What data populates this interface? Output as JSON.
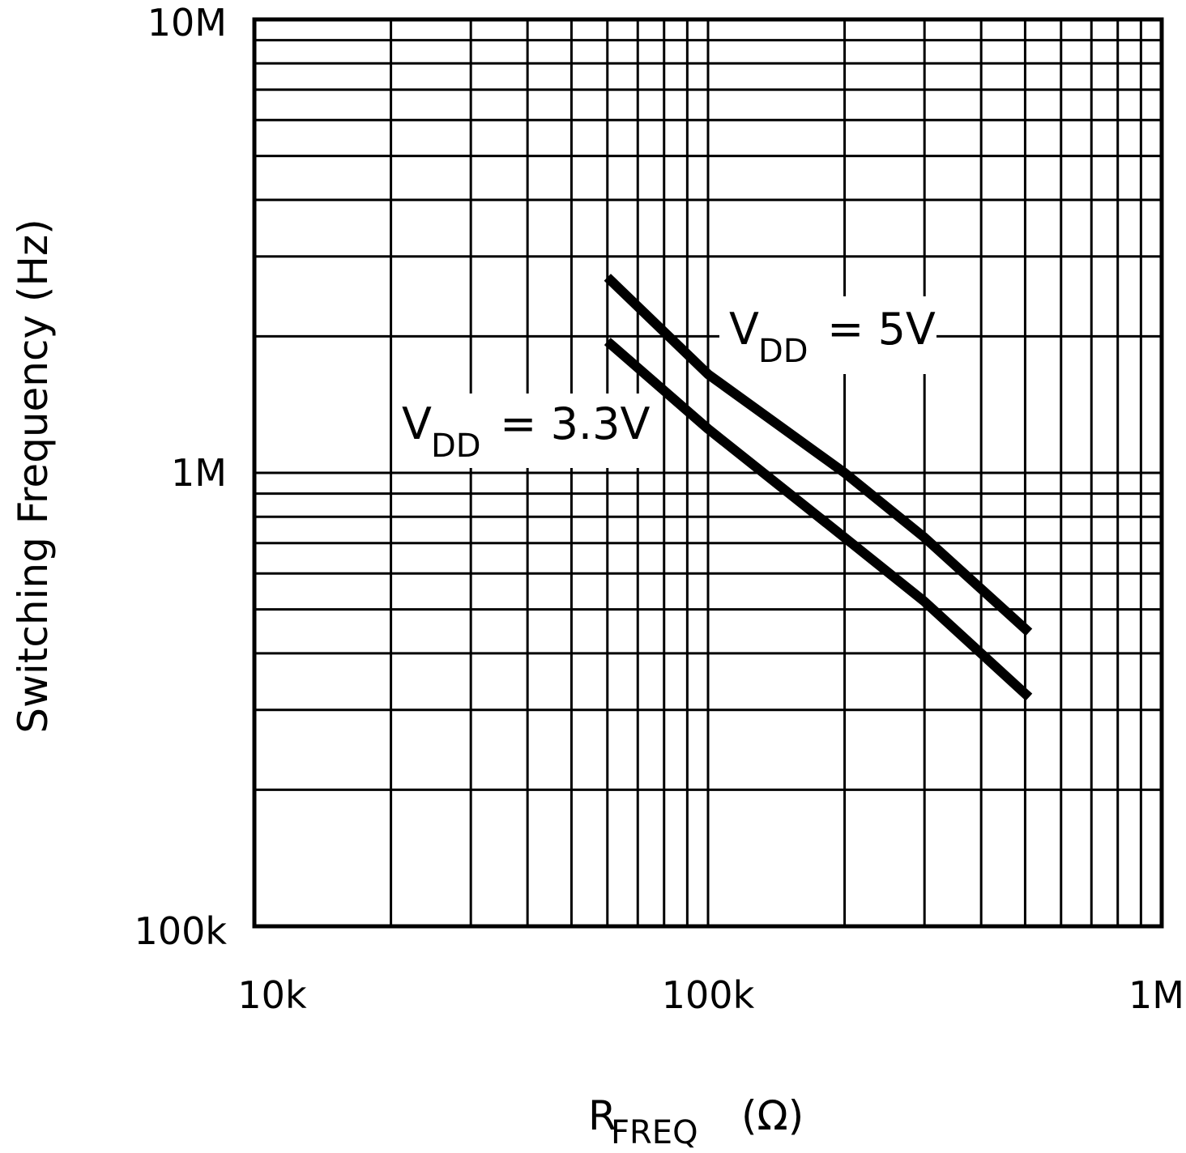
{
  "chart_data": {
    "type": "line",
    "title": "",
    "xlabel": {
      "main": "R",
      "sub": "FREQ",
      "unit": "(Ω)"
    },
    "ylabel": "Switching Frequency (Hz)",
    "xscale": "log",
    "yscale": "log",
    "xlim": [
      10000,
      1000000
    ],
    "ylim": [
      100000,
      10000000
    ],
    "grid": true,
    "x_ticks": [
      {
        "value": 10000,
        "label": "10k"
      },
      {
        "value": 100000,
        "label": "100k"
      },
      {
        "value": 1000000,
        "label": "1M"
      }
    ],
    "y_ticks": [
      {
        "value": 100000,
        "label": "100k"
      },
      {
        "value": 1000000,
        "label": "1M"
      },
      {
        "value": 10000000,
        "label": "10M"
      }
    ],
    "series": [
      {
        "name": "V_DD = 5V",
        "label": {
          "main": "V",
          "sub": "DD",
          "rest": " = 5V"
        },
        "x": [
          60000,
          100000,
          200000,
          300000,
          510000
        ],
        "y": [
          2700000,
          1650000,
          1000000,
          720000,
          445000
        ]
      },
      {
        "name": "V_DD = 3.3V",
        "label": {
          "main": "V",
          "sub": "DD",
          "rest": " = 3.3V"
        },
        "x": [
          60000,
          100000,
          200000,
          300000,
          510000
        ],
        "y": [
          1950000,
          1250000,
          720000,
          520000,
          320000
        ]
      }
    ],
    "colors": {
      "line": "#000000",
      "grid": "#000000",
      "background": "#ffffff"
    }
  }
}
